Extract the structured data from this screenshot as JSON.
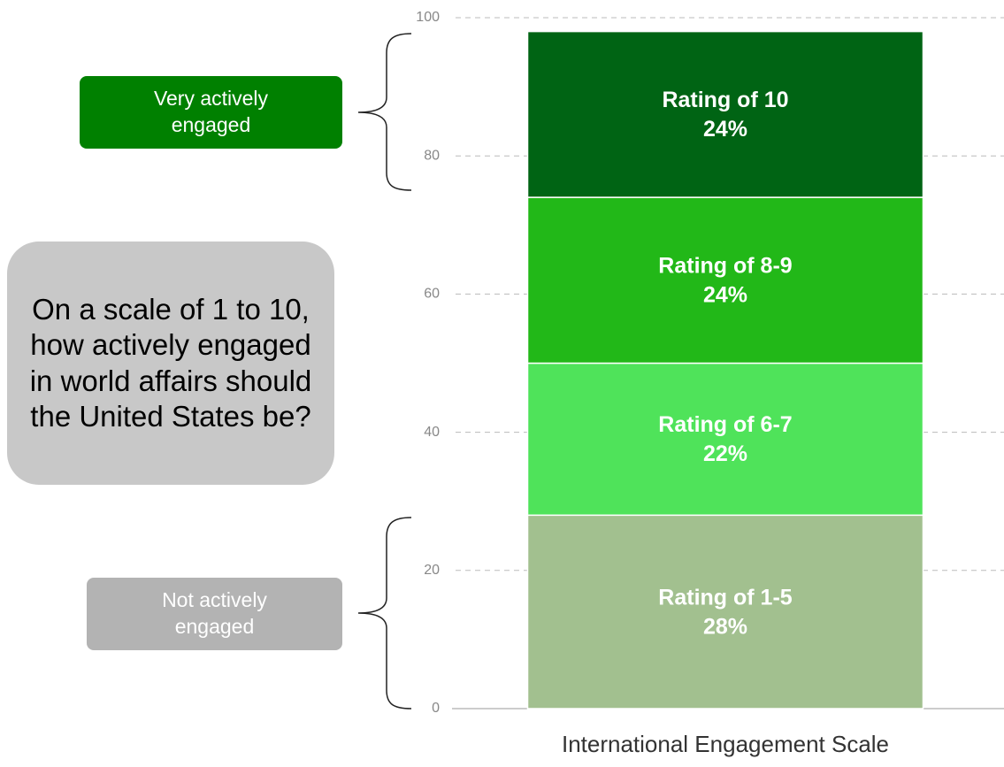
{
  "chart_data": {
    "type": "stacked_bar",
    "categories": [
      "International Engagement Scale"
    ],
    "series": [
      {
        "name": "Rating of 1-5",
        "color": "#a2c08f",
        "values": [
          28
        ],
        "value_labels": [
          "28%"
        ]
      },
      {
        "name": "Rating of 6-7",
        "color": "#4fe35a",
        "values": [
          22
        ],
        "value_labels": [
          "22%"
        ]
      },
      {
        "name": "Rating of 8-9",
        "color": "#22b818",
        "values": [
          24
        ],
        "value_labels": [
          "24%"
        ]
      },
      {
        "name": "Rating of 10",
        "color": "#006414",
        "values": [
          24
        ],
        "value_labels": [
          "24%"
        ]
      }
    ],
    "ylim": [
      0,
      100
    ],
    "yticks": [
      0,
      20,
      40,
      60,
      80,
      100
    ],
    "grid": true,
    "annotations": [
      "Very actively engaged",
      "Not actively engaged",
      "On a scale of 1 to 10, how actively engaged in world affairs should the United States be?"
    ]
  }
}
